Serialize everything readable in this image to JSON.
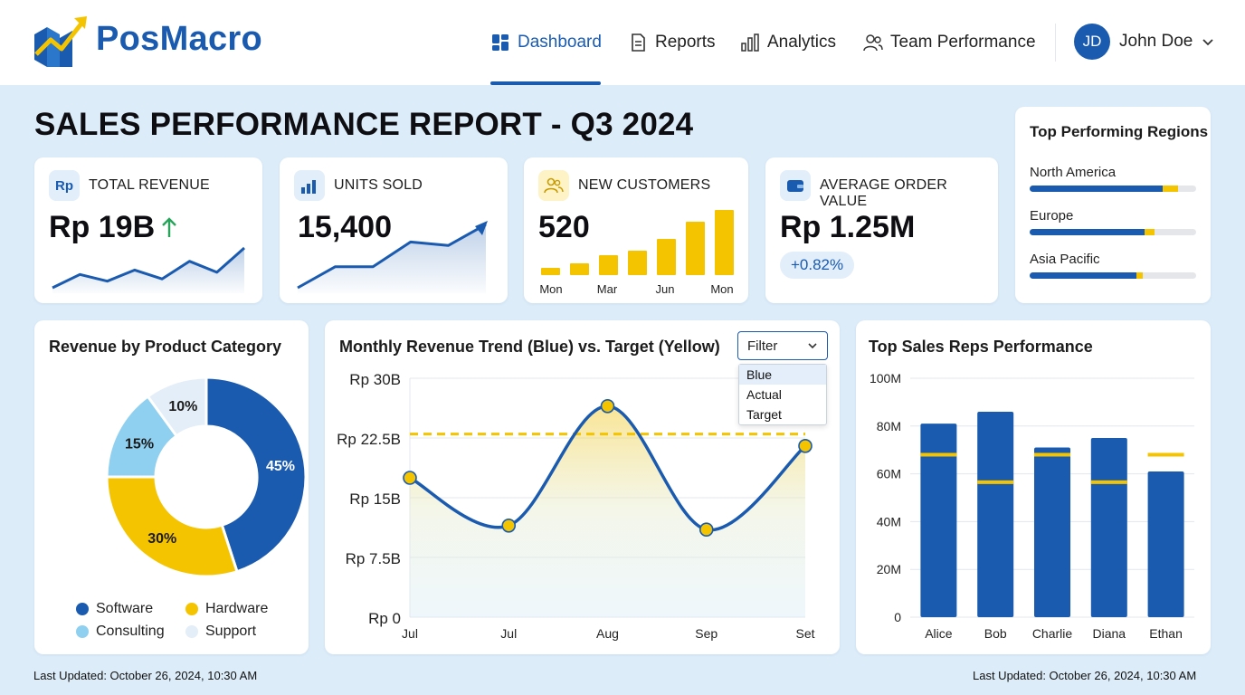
{
  "app": {
    "brand": "PosMacro"
  },
  "nav": {
    "items": [
      {
        "label": "Dashboard",
        "icon": "dashboard-icon",
        "active": true
      },
      {
        "label": "Reports",
        "icon": "document-icon",
        "active": false
      },
      {
        "label": "Analytics",
        "icon": "bar-chart-icon",
        "active": false
      },
      {
        "label": "Team Performance",
        "icon": "team-icon",
        "active": false
      }
    ]
  },
  "user": {
    "initials": "JD",
    "name": "John Doe"
  },
  "page": {
    "title": "SALES PERFORMANCE REPORT - Q3 2024"
  },
  "kpis": {
    "revenue": {
      "icon_text": "Rp",
      "label": "TOTAL REVENUE",
      "value": "Rp 19B",
      "trend": "up"
    },
    "units": {
      "icon": "bar-chart-icon",
      "label": "UNITS SOLD",
      "value": "15,400"
    },
    "customers": {
      "icon": "users-icon",
      "label": "NEW CUSTOMERS",
      "value": "520",
      "chart_labels": [
        "Mon",
        "Mar",
        "Jun",
        "Mon"
      ]
    },
    "aov": {
      "icon": "wallet-icon",
      "label": "AVERAGE ORDER VALUE",
      "value": "Rp 1.25M",
      "badge": "+0.82%"
    }
  },
  "regions": {
    "title": "Top Performing Regions",
    "items": [
      {
        "name": "North America",
        "blue": 0.8,
        "yellow": 0.09
      },
      {
        "name": "Europe",
        "blue": 0.69,
        "yellow": 0.06
      },
      {
        "name": "Asia Pacific",
        "blue": 0.64,
        "yellow": 0.04
      }
    ]
  },
  "category": {
    "title": "Revenue by Product Category",
    "legend": [
      "Software",
      "Hardware",
      "Consulting",
      "Support"
    ]
  },
  "trend": {
    "title": "Monthly Revenue Trend (Blue) vs. Target (Yellow)",
    "filter": {
      "label": "Filter",
      "options": [
        "Blue",
        "Actual",
        "Target"
      ],
      "selected": "Blue"
    }
  },
  "reps": {
    "title": "Top Sales Reps Performance"
  },
  "footer": {
    "left": "Last Updated: October 26, 2024, 10:30 AM",
    "right": "Last Updated: October 26, 2024, 10:30 AM"
  },
  "colors": {
    "blue": "#1a5bb0",
    "yellow": "#f5c400",
    "light_blue": "#8fd0f0",
    "pale": "#e3eef8"
  },
  "chart_data": [
    {
      "type": "pie",
      "categories": [
        "Software",
        "Hardware",
        "Consulting",
        "Support"
      ],
      "values": [
        45,
        30,
        15,
        10
      ],
      "labels": [
        "45%",
        "30%",
        "15%",
        "10%"
      ],
      "colors": [
        "#1a5bb0",
        "#f5c400",
        "#8fd0f0",
        "#e3eef8"
      ],
      "legend": "bottom"
    },
    {
      "type": "line",
      "x": [
        "Jul",
        "Jul",
        "Aug",
        "Sep",
        "Set"
      ],
      "series": [
        {
          "values": [
            17.5,
            11.5,
            26.5,
            11,
            21.5
          ],
          "color": "#1a5bb0"
        }
      ],
      "target": 23,
      "yticks": [
        "Rp 0",
        "Rp 7.5B",
        "Rp 15B",
        "Rp 22.5B",
        "Rp 30B"
      ],
      "ylim": [
        0,
        30
      ],
      "grid": true
    },
    {
      "type": "bar",
      "categories": [
        "Alice",
        "Bob",
        "Charlie",
        "Diana",
        "Ethan"
      ],
      "values": [
        81,
        86,
        71,
        75,
        61
      ],
      "target_values": [
        68,
        56.5,
        68,
        56.5,
        68
      ],
      "yticks": [
        "0",
        "20M",
        "40M",
        "60M",
        "80M",
        "100M"
      ],
      "ylim": [
        0,
        100
      ],
      "grid": true
    },
    {
      "type": "line",
      "name_ref": "revenue-sparkline",
      "values": [
        2,
        8,
        5,
        10,
        6,
        14,
        9,
        20
      ]
    },
    {
      "type": "line",
      "name_ref": "units-sparkline",
      "values": [
        2,
        14,
        14,
        28,
        26,
        38
      ]
    },
    {
      "type": "bar",
      "name_ref": "customers-minibars",
      "values": [
        8,
        13,
        22,
        27,
        40,
        59,
        72
      ]
    }
  ]
}
